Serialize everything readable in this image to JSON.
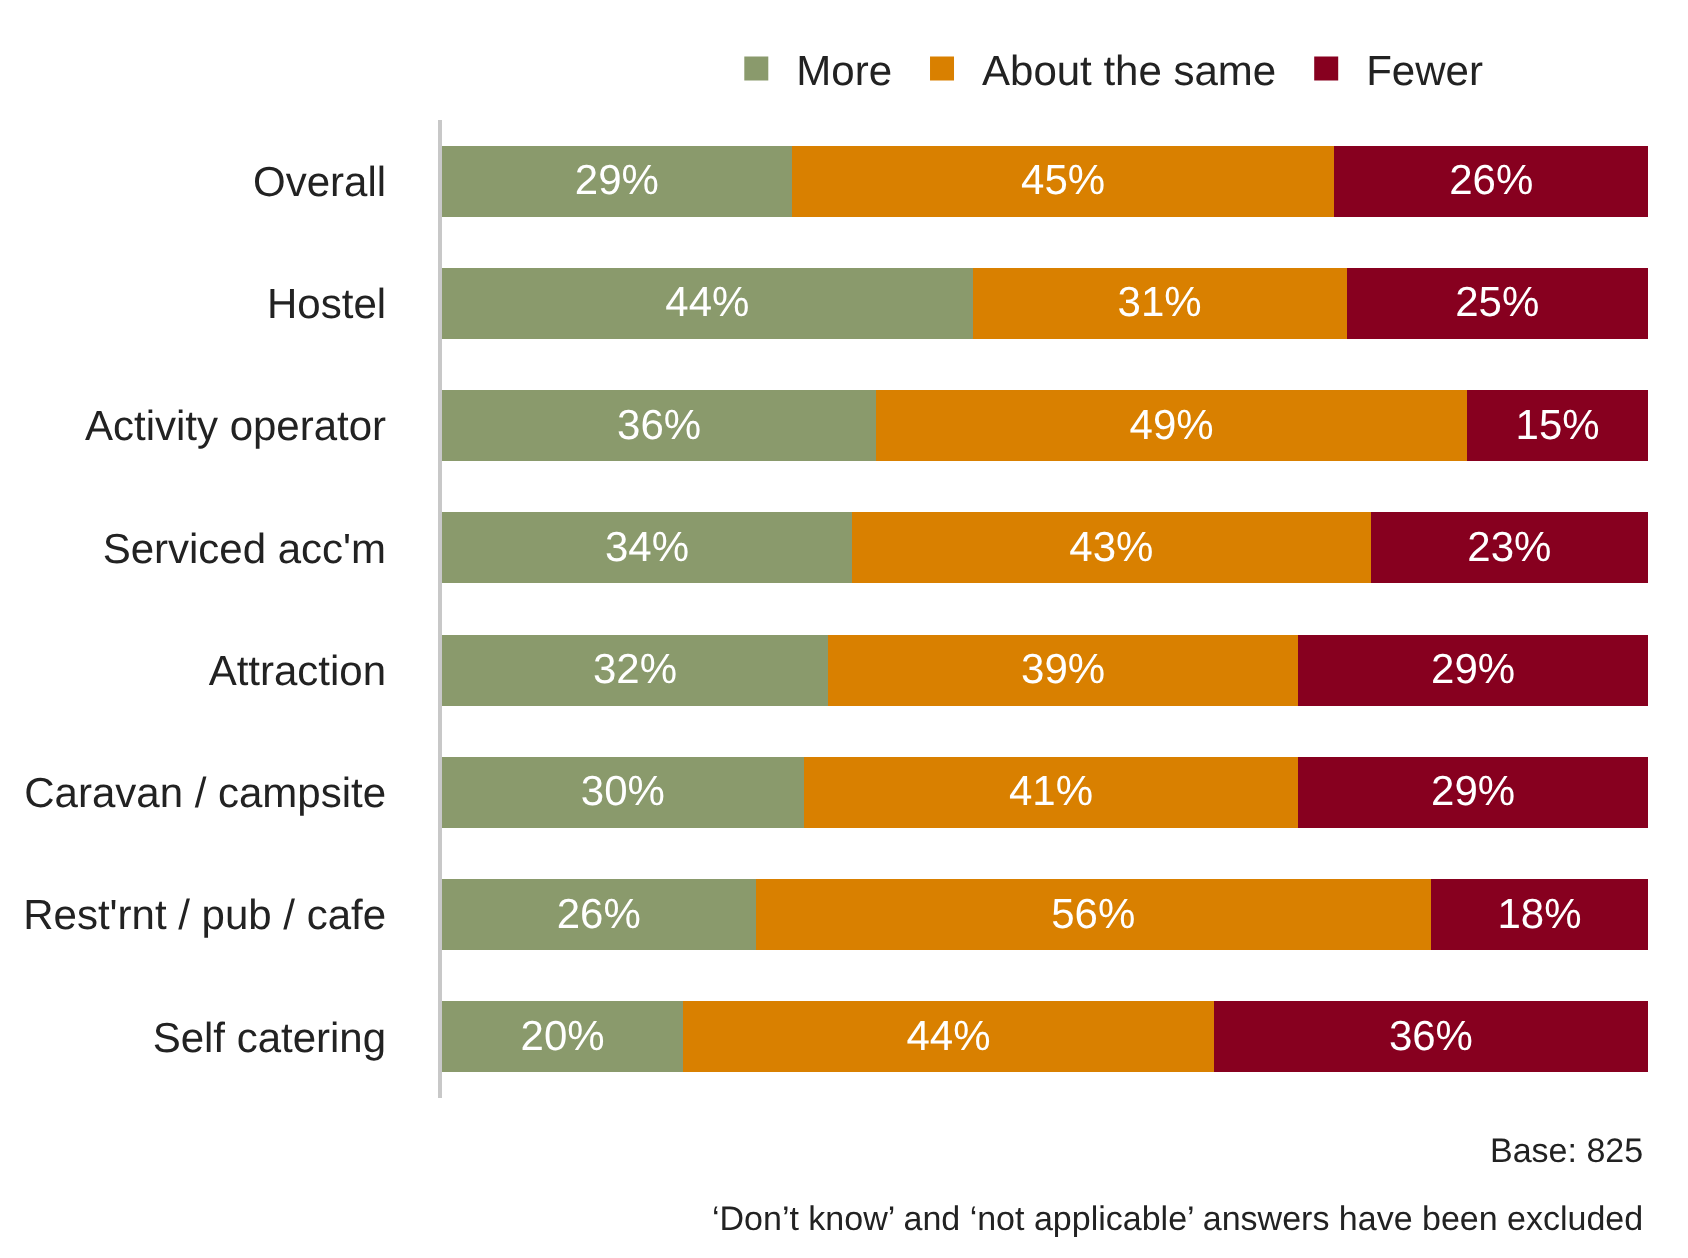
{
  "chart_data": {
    "type": "bar",
    "orientation": "horizontal",
    "stacked": true,
    "legend": "top",
    "xlim": [
      0,
      100
    ],
    "tick_labels": "y",
    "categories": [
      "Overall",
      "Hostel",
      "Activity operator",
      "Serviced acc'm",
      "Attraction",
      "Caravan / campsite",
      "Rest'rnt / pub / cafe",
      "Self catering"
    ],
    "series": [
      {
        "name": "More",
        "color": "#8a9a6c",
        "values": [
          29,
          44,
          36,
          34,
          32,
          30,
          26,
          20
        ],
        "value_labels": [
          "29%",
          "44%",
          "36%",
          "34%",
          "32%",
          "30%",
          "26%",
          "20%"
        ]
      },
      {
        "name": "About the same",
        "color": "#d98000",
        "values": [
          45,
          31,
          49,
          43,
          39,
          41,
          56,
          44
        ],
        "value_labels": [
          "45%",
          "31%",
          "49%",
          "43%",
          "39%",
          "41%",
          "56%",
          "44%"
        ]
      },
      {
        "name": "Fewer",
        "color": "#87001f",
        "values": [
          26,
          25,
          15,
          23,
          29,
          29,
          18,
          36
        ],
        "value_labels": [
          "26%",
          "25%",
          "15%",
          "23%",
          "29%",
          "29%",
          "18%",
          "36%"
        ]
      }
    ],
    "annotations": [
      "Base: 825",
      "‘Don’t know’ and ‘not applicable’ answers have been excluded"
    ]
  }
}
